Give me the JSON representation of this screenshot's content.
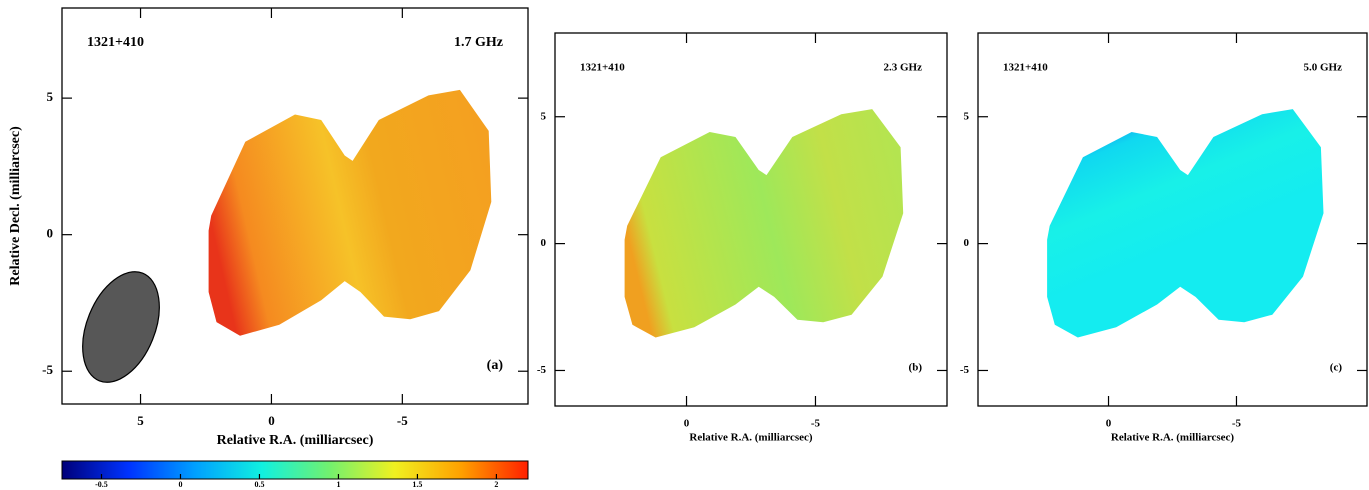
{
  "chart_data": [
    {
      "type": "map",
      "title": "1321+410",
      "subtitle": "1.7 GHz",
      "panel_label": "(a)",
      "x_label": "Relative R.A. (milliarcsec)",
      "y_label": "Relative Decl. (milliarcsec)",
      "xlim": [
        8,
        -9.8
      ],
      "ylim": [
        -6.2,
        8.3
      ],
      "xticks": [
        5,
        0,
        -5
      ],
      "yticks": [
        5,
        0,
        -5
      ]
    },
    {
      "type": "map",
      "title": "1321+410",
      "subtitle": "2.3 GHz",
      "panel_label": "(b)",
      "x_label": "Relative R.A. (milliarcsec)",
      "xlim": [
        5.1,
        -10.1
      ],
      "ylim": [
        -6.4,
        8.3
      ],
      "xticks": [
        0,
        -5
      ],
      "yticks": [
        5,
        0,
        -5
      ]
    },
    {
      "type": "map",
      "title": "1321+410",
      "subtitle": "5.0 GHz",
      "panel_label": "(c)",
      "x_label": "Relative R.A. (milliarcsec)",
      "xlim": [
        5.1,
        -10.1
      ],
      "ylim": [
        -6.4,
        8.3
      ],
      "xticks": [
        0,
        -5
      ],
      "yticks": [
        5,
        0,
        -5
      ]
    },
    {
      "type": "colorbar",
      "xlim": [
        -0.75,
        2.2
      ],
      "xticks": [
        -0.5,
        0,
        0.5,
        1,
        1.5,
        2
      ],
      "colors": [
        "#00007a",
        "#0033ff",
        "#00a0ff",
        "#10f0e0",
        "#70f070",
        "#f0f020",
        "#ffa000",
        "#ff2000"
      ]
    }
  ]
}
